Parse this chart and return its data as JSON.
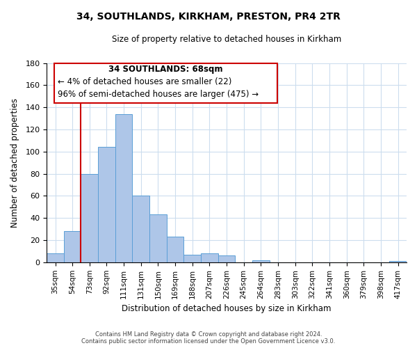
{
  "title": "34, SOUTHLANDS, KIRKHAM, PRESTON, PR4 2TR",
  "subtitle": "Size of property relative to detached houses in Kirkham",
  "xlabel": "Distribution of detached houses by size in Kirkham",
  "ylabel": "Number of detached properties",
  "bar_labels": [
    "35sqm",
    "54sqm",
    "73sqm",
    "92sqm",
    "111sqm",
    "131sqm",
    "150sqm",
    "169sqm",
    "188sqm",
    "207sqm",
    "226sqm",
    "245sqm",
    "264sqm",
    "283sqm",
    "303sqm",
    "322sqm",
    "341sqm",
    "360sqm",
    "379sqm",
    "398sqm",
    "417sqm"
  ],
  "bar_values": [
    8,
    28,
    80,
    104,
    134,
    60,
    43,
    23,
    7,
    8,
    6,
    0,
    2,
    0,
    0,
    0,
    0,
    0,
    0,
    0,
    1
  ],
  "bar_color": "#aec6e8",
  "bar_edge_color": "#5a9ed6",
  "vline_x": 1.5,
  "vline_color": "#cc0000",
  "ylim": [
    0,
    180
  ],
  "yticks": [
    0,
    20,
    40,
    60,
    80,
    100,
    120,
    140,
    160,
    180
  ],
  "annotation_title": "34 SOUTHLANDS: 68sqm",
  "annotation_line1": "← 4% of detached houses are smaller (22)",
  "annotation_line2": "96% of semi-detached houses are larger (475) →",
  "annotation_box_color": "#ffffff",
  "annotation_box_edge_color": "#cc0000",
  "footer_line1": "Contains HM Land Registry data © Crown copyright and database right 2024.",
  "footer_line2": "Contains public sector information licensed under the Open Government Licence v3.0.",
  "background_color": "#ffffff",
  "grid_color": "#ccddee"
}
